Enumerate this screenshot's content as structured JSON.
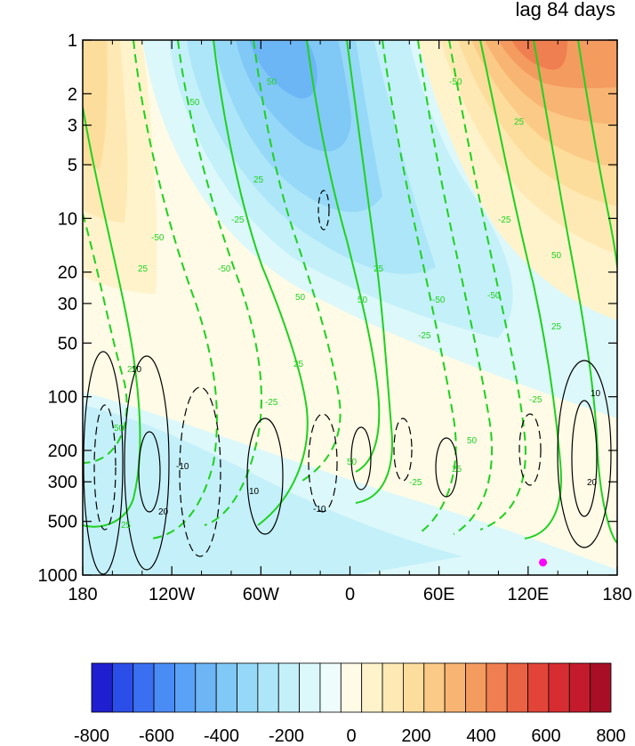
{
  "chart_data": {
    "type": "contour",
    "title": "lag 84 days",
    "xlabel": "",
    "ylabel": "",
    "x_axis": {
      "ticks": [
        -180,
        -120,
        -60,
        0,
        60,
        120,
        180
      ],
      "tick_labels": [
        "180",
        "120W",
        "60W",
        "0",
        "60E",
        "120E",
        "180"
      ],
      "range": [
        -180,
        180
      ]
    },
    "y_axis": {
      "scale": "log",
      "inverted": true,
      "ticks": [
        1,
        2,
        3,
        5,
        10,
        20,
        30,
        50,
        100,
        200,
        300,
        500,
        1000
      ],
      "tick_labels": [
        "1",
        "2",
        "3",
        "5",
        "10",
        "20",
        "30",
        "50",
        "100",
        "200",
        "300",
        "500",
        "1000"
      ],
      "range": [
        1,
        1000
      ]
    },
    "colorbar": {
      "tick_labels": [
        "-800",
        "-600",
        "-400",
        "-200",
        "0",
        "200",
        "400",
        "600",
        "800"
      ],
      "ticks": [
        -800,
        -600,
        -400,
        -200,
        0,
        200,
        400,
        600,
        800
      ],
      "colors": [
        "#1f1fd0",
        "#2c4ee8",
        "#3a6ff2",
        "#4a8cf6",
        "#5aa2f7",
        "#6cb6f6",
        "#80c8f6",
        "#96d8f7",
        "#ade6f8",
        "#c4f0f9",
        "#dcf8fa",
        "#eefcfc",
        "#fffbe6",
        "#fff3cc",
        "#fee9b4",
        "#fddd9c",
        "#fbca86",
        "#f8b472",
        "#f49b60",
        "#ef7f50",
        "#e96244",
        "#e24439",
        "#d72c31",
        "#c41b2c",
        "#a80f26"
      ]
    },
    "shaded_field": [
      {
        "x": -160,
        "y": 2,
        "v": 250
      },
      {
        "x": -40,
        "y": 1,
        "v": -550
      },
      {
        "x": -30,
        "y": 8,
        "v": -300
      },
      {
        "x": 120,
        "y": 1,
        "v": 550
      },
      {
        "x": 140,
        "y": 10,
        "v": 250
      },
      {
        "x": -160,
        "y": 300,
        "v": -50
      },
      {
        "x": 60,
        "y": 100,
        "v": -50
      },
      {
        "x": 0,
        "y": 300,
        "v": 50
      }
    ],
    "green_contour_labels": [
      "25",
      "50",
      "-50",
      "-25",
      "-50",
      "25",
      "-25",
      "50",
      "-25",
      "-50",
      "-50",
      "25",
      "-50",
      "25",
      "25",
      "-25",
      "-50",
      "50",
      "-25",
      "25",
      "-25",
      "25",
      "50",
      "-25",
      "-50",
      "25",
      "-25",
      "50",
      "-25",
      "50",
      "50",
      "-50",
      "-25",
      "25",
      "25",
      "25",
      "50",
      "-25",
      "25"
    ],
    "black_contour_labels": [
      "10",
      "-10",
      "-10",
      "20",
      "10",
      "10",
      "-10",
      "10",
      "20"
    ],
    "marker": {
      "x": 130,
      "y": 850,
      "color": "#ff00ff"
    }
  }
}
